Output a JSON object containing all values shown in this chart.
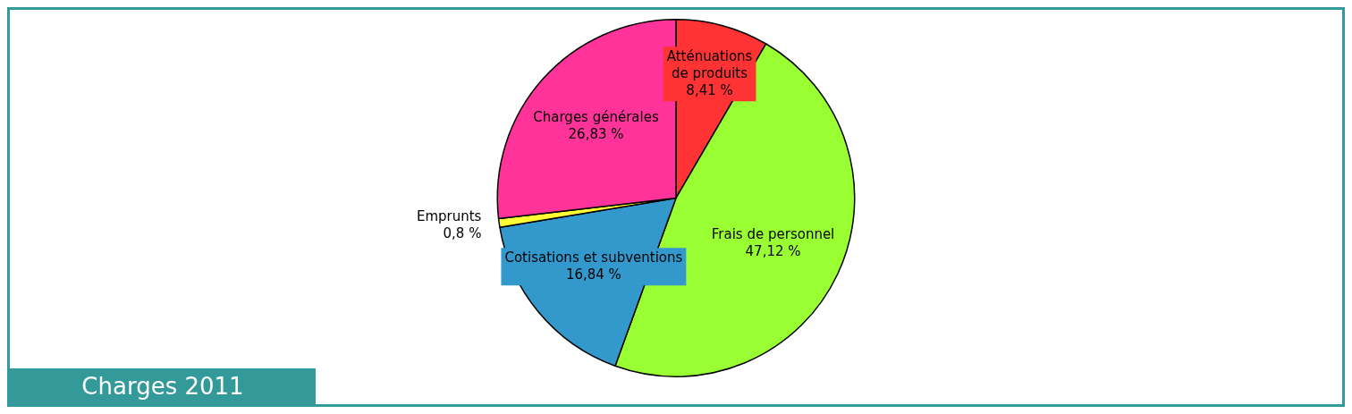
{
  "chart_data": {
    "type": "pie",
    "title": "Charges 2011",
    "categories": [
      "Atténuations\nde produits",
      "Frais de personnel",
      "Cotisations et subventions",
      "Emprunts",
      "Charges générales"
    ],
    "values": [
      8.41,
      47.12,
      16.84,
      0.8,
      26.83
    ],
    "colors": [
      "#ff3333",
      "#99ff33",
      "#3399cc",
      "#ffff33",
      "#ff3399"
    ],
    "value_labels": [
      "8,41 %",
      "47,12 %",
      "16,84 %",
      "0,8 %",
      "26,83 %"
    ],
    "legend": false
  }
}
